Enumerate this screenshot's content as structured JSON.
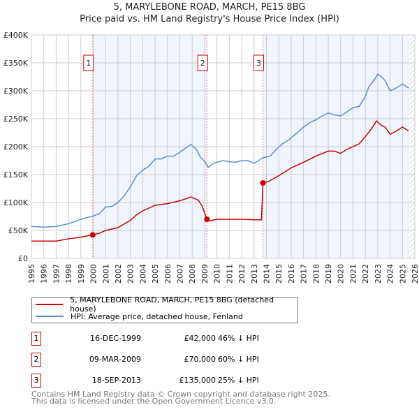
{
  "title": "5, MARYLEBONE ROAD, MARCH, PE15 8BG",
  "subtitle": "Price paid vs. HM Land Registry's House Price Index (HPI)",
  "chart_data": {
    "type": "line",
    "title": "5, MARYLEBONE ROAD, MARCH, PE15 8BG",
    "xlim": [
      1995,
      2026
    ],
    "ylim": [
      0,
      400000
    ],
    "yticks": [
      {
        "v": 0,
        "label": "£0"
      },
      {
        "v": 50000,
        "label": "£50K"
      },
      {
        "v": 100000,
        "label": "£100K"
      },
      {
        "v": 150000,
        "label": "£150K"
      },
      {
        "v": 200000,
        "label": "£200K"
      },
      {
        "v": 250000,
        "label": "£250K"
      },
      {
        "v": 300000,
        "label": "£300K"
      },
      {
        "v": 350000,
        "label": "£350K"
      },
      {
        "v": 400000,
        "label": "£400K"
      }
    ],
    "xticks": [
      "1995",
      "1996",
      "1997",
      "1998",
      "1999",
      "2000",
      "2001",
      "2002",
      "2003",
      "2004",
      "2005",
      "2006",
      "2007",
      "2008",
      "2009",
      "2010",
      "2011",
      "2012",
      "2013",
      "2014",
      "2015",
      "2016",
      "2017",
      "2018",
      "2019",
      "2020",
      "2021",
      "2022",
      "2023",
      "2024",
      "2025",
      "2026"
    ],
    "grid": true,
    "series": [
      {
        "name": "HPI: Average price, detached house, Fenland",
        "color": "#5b8fd6",
        "x": [
          1995,
          1996,
          1997,
          1998,
          1999,
          2000,
          2000.5,
          2001,
          2001.5,
          2002,
          2002.5,
          2003,
          2003.5,
          2004,
          2004.5,
          2005,
          2005.5,
          2006,
          2006.5,
          2007,
          2007.5,
          2007.9,
          2008.3,
          2008.7,
          2009,
          2009.3,
          2009.7,
          2010,
          2010.5,
          2011,
          2011.5,
          2012,
          2012.5,
          2013,
          2013.7,
          2014.3,
          2014.8,
          2015.3,
          2015.8,
          2016.5,
          2017,
          2017.5,
          2018,
          2018.5,
          2019,
          2019.5,
          2020,
          2020.5,
          2021,
          2021.5,
          2022,
          2022.3,
          2022.8,
          2023,
          2023.3,
          2023.6,
          2024,
          2024.5,
          2025,
          2025.5
        ],
        "y": [
          57,
          56,
          57,
          62,
          70,
          76,
          80,
          92,
          93,
          100,
          112,
          128,
          148,
          158,
          165,
          178,
          178,
          183,
          183,
          190,
          198,
          204,
          196,
          180,
          174,
          163,
          170,
          172,
          175,
          173,
          172,
          175,
          175,
          170,
          180,
          183,
          195,
          205,
          212,
          225,
          235,
          243,
          248,
          255,
          260,
          257,
          255,
          262,
          270,
          272,
          290,
          308,
          322,
          330,
          325,
          318,
          300,
          305,
          312,
          305
        ]
      },
      {
        "name": "5, MARYLEBONE ROAD, MARCH, PE15 8BG (detached house)",
        "color": "#cc0000",
        "x": [
          1995,
          1997,
          1998,
          1999,
          1999.96,
          2000.5,
          2001,
          2002,
          2003,
          2003.5,
          2004,
          2005,
          2006,
          2007,
          2007.9,
          2008.5,
          2008.8,
          2009.19,
          2009.4,
          2010,
          2011,
          2012,
          2013,
          2013.6,
          2013.72,
          2014.2,
          2015,
          2015.5,
          2016,
          2017,
          2018,
          2019,
          2019.5,
          2020,
          2020.5,
          2021,
          2021.5,
          2022,
          2022.5,
          2022.9,
          2023.3,
          2023.6,
          2024,
          2024.5,
          2025,
          2025.5
        ],
        "y": [
          31,
          31,
          35,
          38,
          42,
          45,
          50,
          55,
          68,
          78,
          85,
          95,
          98,
          103,
          110,
          104,
          94,
          70,
          67,
          70,
          70,
          70,
          69,
          69,
          135,
          138,
          148,
          155,
          162,
          172,
          183,
          192,
          192,
          188,
          195,
          200,
          205,
          218,
          232,
          246,
          238,
          235,
          222,
          228,
          235,
          228
        ]
      }
    ],
    "sales": [
      {
        "n": "1",
        "x": 1999.96,
        "y": 42
      },
      {
        "n": "2",
        "x": 2009.19,
        "y": 70
      },
      {
        "n": "3",
        "x": 2013.72,
        "y": 135
      }
    ],
    "legend": "below"
  },
  "legend": {
    "red": "5, MARYLEBONE ROAD, MARCH, PE15 8BG (detached house)",
    "blue": "HPI: Average price, detached house, Fenland"
  },
  "table": [
    {
      "n": "1",
      "date": "16-DEC-1999",
      "price": "£42,000",
      "hpi": "46% ↓ HPI"
    },
    {
      "n": "2",
      "date": "09-MAR-2009",
      "price": "£70,000",
      "hpi": "60% ↓ HPI"
    },
    {
      "n": "3",
      "date": "18-SEP-2013",
      "price": "£135,000",
      "hpi": "25% ↓ HPI"
    }
  ],
  "footer": [
    "Contains HM Land Registry data © Crown copyright and database right 2025.",
    "This data is licensed under the Open Government Licence v3.0."
  ]
}
